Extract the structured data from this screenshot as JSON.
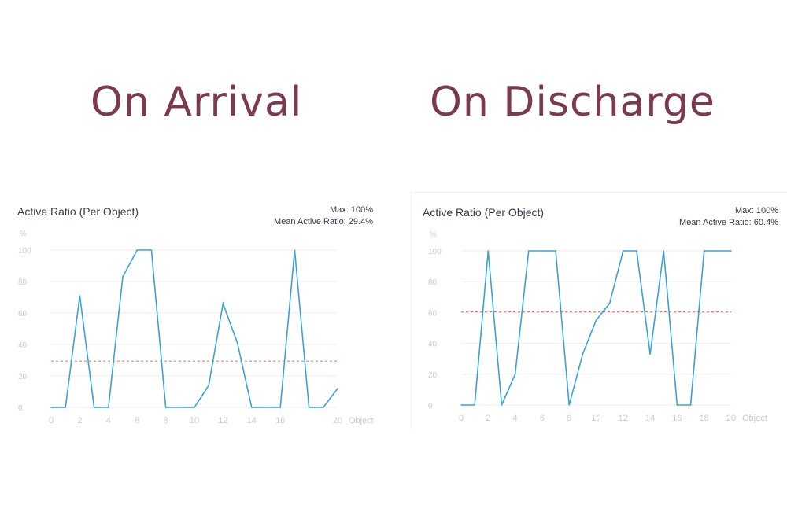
{
  "headings": {
    "left": "On Arrival",
    "right": "On Discharge"
  },
  "colors": {
    "heading": "#7d3a4f",
    "line": "#3aa3d6",
    "mean_line": "#e8826a",
    "grid": "#eeeeee",
    "axis_text": "#c6cbd4",
    "title_text": "#333a44"
  },
  "chart_data": [
    {
      "type": "line",
      "title": "Active Ratio (Per Object)",
      "ylabel": "%",
      "xlabel": "Object",
      "max_label": "Max: 100%",
      "mean_label": "Mean Active Ratio: 29.4%",
      "mean": 29.4,
      "ylim": [
        0,
        100
      ],
      "xlim": [
        0,
        20
      ],
      "y_ticks": [
        0,
        20,
        40,
        60,
        80,
        100
      ],
      "x_ticks": [
        0,
        2,
        4,
        6,
        8,
        10,
        12,
        14,
        16,
        20
      ],
      "grid": true,
      "series": [
        {
          "x": [
            0,
            1,
            2,
            3,
            4,
            5,
            6,
            7,
            8,
            9,
            10,
            11,
            12,
            13,
            14,
            15,
            16,
            17,
            18,
            19,
            20
          ],
          "values": [
            0,
            0,
            71,
            0,
            0,
            83,
            100,
            100,
            0,
            0,
            0,
            14,
            66,
            41,
            0,
            0,
            0,
            100,
            0,
            0,
            12
          ]
        }
      ]
    },
    {
      "type": "line",
      "title": "Active Ratio (Per Object)",
      "ylabel": "%",
      "xlabel": "Object",
      "max_label": "Max: 100%",
      "mean_label": "Mean Active Ratio: 60.4%",
      "mean": 60.4,
      "ylim": [
        0,
        100
      ],
      "xlim": [
        0,
        20
      ],
      "y_ticks": [
        0,
        20,
        40,
        60,
        80,
        100
      ],
      "x_ticks": [
        0,
        2,
        4,
        6,
        8,
        10,
        12,
        14,
        16,
        18,
        20
      ],
      "grid": true,
      "series": [
        {
          "x": [
            0,
            1,
            2,
            3,
            4,
            5,
            6,
            7,
            8,
            9,
            10,
            11,
            12,
            13,
            14,
            15,
            16,
            17,
            18,
            19,
            20
          ],
          "values": [
            0,
            0,
            100,
            0,
            20,
            100,
            100,
            100,
            0,
            33,
            55,
            66,
            100,
            100,
            33,
            100,
            0,
            0,
            100,
            100,
            100
          ]
        }
      ]
    }
  ]
}
